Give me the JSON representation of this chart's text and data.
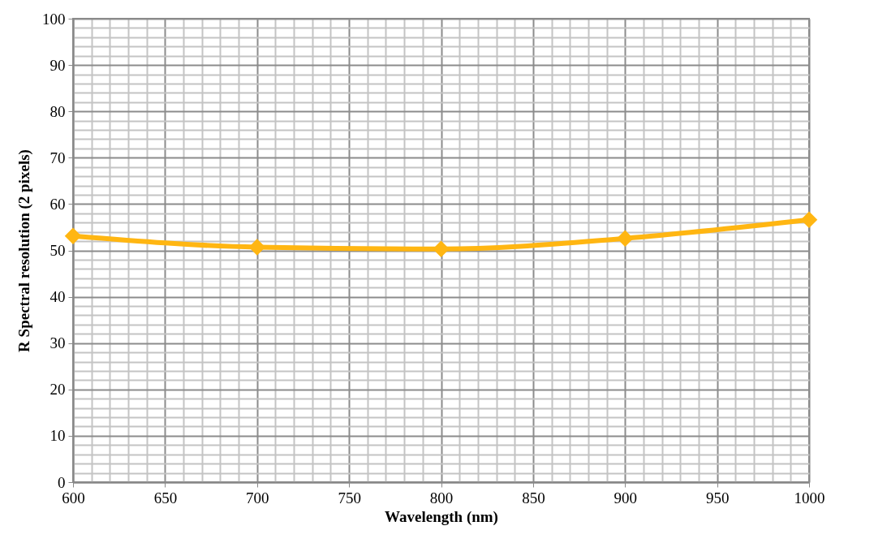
{
  "chart_data": {
    "type": "line",
    "xlabel": "Wavelength (nm)",
    "ylabel": "R Spectral resolution (2 pixels)",
    "x": [
      600,
      700,
      800,
      900,
      1000
    ],
    "series": [
      {
        "color": "#ffb612",
        "values": [
          53.1,
          50.7,
          50.3,
          52.6,
          56.6
        ]
      }
    ],
    "xlim": [
      600,
      1000
    ],
    "xticks": [
      600,
      650,
      700,
      750,
      800,
      850,
      900,
      950,
      1000
    ],
    "ylim": [
      0,
      100
    ],
    "yticks": [
      0,
      10,
      20,
      30,
      40,
      50,
      60,
      70,
      80,
      90,
      100
    ],
    "grid": true,
    "marker": "diamond",
    "line_style": "solid",
    "legend": false
  }
}
